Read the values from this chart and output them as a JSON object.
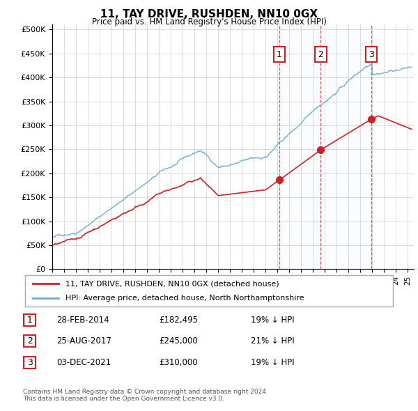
{
  "title": "11, TAY DRIVE, RUSHDEN, NN10 0GX",
  "subtitle": "Price paid vs. HM Land Registry's House Price Index (HPI)",
  "yticks": [
    0,
    50000,
    100000,
    150000,
    200000,
    250000,
    300000,
    350000,
    400000,
    450000,
    500000
  ],
  "ytick_labels": [
    "£0",
    "£50K",
    "£100K",
    "£150K",
    "£200K",
    "£250K",
    "£300K",
    "£350K",
    "£400K",
    "£450K",
    "£500K"
  ],
  "xlim_start": 1995.0,
  "xlim_end": 2025.5,
  "ylim_min": 0,
  "ylim_max": 510000,
  "hpi_color": "#6baed6",
  "price_color": "#cc2222",
  "shade_color": "#ddeeff",
  "transactions": [
    {
      "id": 1,
      "date_str": "28-FEB-2014",
      "price": 182495,
      "pct": "19%",
      "x": 2014.16
    },
    {
      "id": 2,
      "date_str": "25-AUG-2017",
      "price": 245000,
      "pct": "21%",
      "x": 2017.65
    },
    {
      "id": 3,
      "date_str": "03-DEC-2021",
      "price": 310000,
      "pct": "19%",
      "x": 2021.92
    }
  ],
  "legend_line1": "11, TAY DRIVE, RUSHDEN, NN10 0GX (detached house)",
  "legend_line2": "HPI: Average price, detached house, North Northamptonshire",
  "footer1": "Contains HM Land Registry data © Crown copyright and database right 2024.",
  "footer2": "This data is licensed under the Open Government Licence v3.0.",
  "table_rows": [
    {
      "id": 1,
      "date": "28-FEB-2014",
      "price_str": "£182,495",
      "pct_str": "19% ↓ HPI"
    },
    {
      "id": 2,
      "date": "25-AUG-2017",
      "price_str": "£245,000",
      "pct_str": "21% ↓ HPI"
    },
    {
      "id": 3,
      "date": "03-DEC-2021",
      "price_str": "£310,000",
      "pct_str": "19% ↓ HPI"
    }
  ]
}
